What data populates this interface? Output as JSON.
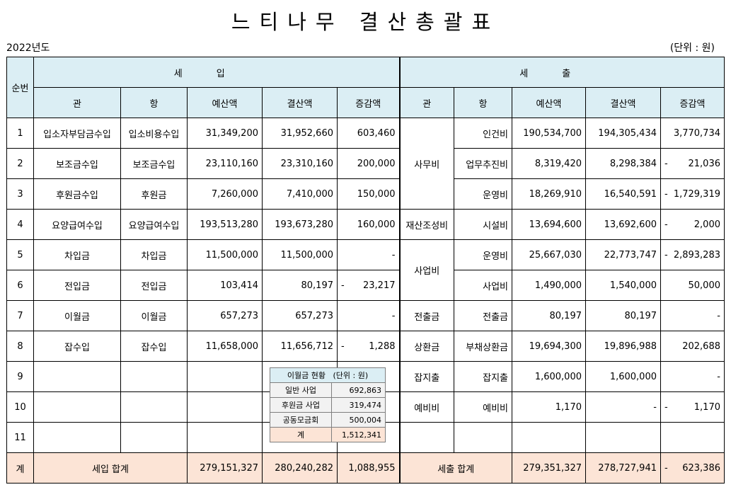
{
  "title": "느티나무 결산총괄표",
  "year": "2022년도",
  "unit": "(단위 : 원)",
  "header": {
    "seq": "순번",
    "income": "세입",
    "expense": "세출",
    "gwan": "관",
    "hang": "항",
    "budget": "예산액",
    "settled": "결산액",
    "diff": "증감액"
  },
  "income_rows": [
    {
      "no": "1",
      "gwan": "입소자부담금수입",
      "hang": "입소비용수입",
      "budget": "31,349,200",
      "settled": "31,952,660",
      "diff": "603,460",
      "neg": ""
    },
    {
      "no": "2",
      "gwan": "보조금수입",
      "hang": "보조금수입",
      "budget": "23,110,160",
      "settled": "23,310,160",
      "diff": "200,000",
      "neg": ""
    },
    {
      "no": "3",
      "gwan": "후원금수입",
      "hang": "후원금",
      "budget": "7,260,000",
      "settled": "7,410,000",
      "diff": "150,000",
      "neg": ""
    },
    {
      "no": "4",
      "gwan": "요양급여수입",
      "hang": "요양급여수입",
      "budget": "193,513,280",
      "settled": "193,673,280",
      "diff": "160,000",
      "neg": ""
    },
    {
      "no": "5",
      "gwan": "차입금",
      "hang": "차입금",
      "budget": "11,500,000",
      "settled": "11,500,000",
      "diff": "-",
      "neg": ""
    },
    {
      "no": "6",
      "gwan": "전입금",
      "hang": "전입금",
      "budget": "103,414",
      "settled": "80,197",
      "diff": "23,217",
      "neg": "-"
    },
    {
      "no": "7",
      "gwan": "이월금",
      "hang": "이월금",
      "budget": "657,273",
      "settled": "657,273",
      "diff": "-",
      "neg": ""
    },
    {
      "no": "8",
      "gwan": "잡수입",
      "hang": "잡수입",
      "budget": "11,658,000",
      "settled": "11,656,712",
      "diff": "1,288",
      "neg": "-"
    },
    {
      "no": "9",
      "gwan": "",
      "hang": "",
      "budget": "",
      "settled": "",
      "diff": "",
      "neg": ""
    },
    {
      "no": "10",
      "gwan": "",
      "hang": "",
      "budget": "",
      "settled": "",
      "diff": "",
      "neg": ""
    },
    {
      "no": "11",
      "gwan": "",
      "hang": "",
      "budget": "",
      "settled": "",
      "diff": "",
      "neg": ""
    }
  ],
  "expense_gwan": {
    "g1": "사무비",
    "g2": "재산조성비",
    "g3": "사업비",
    "g4": "전출금",
    "g5": "상환금",
    "g6": "잡지출",
    "g7": "예비비"
  },
  "expense_rows": [
    {
      "hang": "인건비",
      "budget": "190,534,700",
      "settled": "194,305,434",
      "diff": "3,770,734",
      "neg": ""
    },
    {
      "hang": "업무추진비",
      "budget": "8,319,420",
      "settled": "8,298,384",
      "diff": "21,036",
      "neg": "-"
    },
    {
      "hang": "운영비",
      "budget": "18,269,910",
      "settled": "16,540,591",
      "diff": "1,729,319",
      "neg": "-"
    },
    {
      "hang": "시설비",
      "budget": "13,694,600",
      "settled": "13,692,600",
      "diff": "2,000",
      "neg": "-"
    },
    {
      "hang": "운영비",
      "budget": "25,667,030",
      "settled": "22,773,747",
      "diff": "2,893,283",
      "neg": "-"
    },
    {
      "hang": "사업비",
      "budget": "1,490,000",
      "settled": "1,540,000",
      "diff": "50,000",
      "neg": ""
    },
    {
      "hang": "전출금",
      "budget": "80,197",
      "settled": "80,197",
      "diff": "-",
      "neg": ""
    },
    {
      "hang": "부채상환금",
      "budget": "19,694,300",
      "settled": "19,896,988",
      "diff": "202,688",
      "neg": ""
    },
    {
      "hang": "잡지출",
      "budget": "1,600,000",
      "settled": "1,600,000",
      "diff": "-",
      "neg": ""
    },
    {
      "hang": "예비비",
      "budget": "1,170",
      "settled": "-",
      "diff": "1,170",
      "neg": "-"
    },
    {
      "hang": "",
      "budget": "",
      "settled": "",
      "diff": "",
      "neg": ""
    }
  ],
  "totals": {
    "label": "계",
    "income_label": "세입 합계",
    "income_budget": "279,151,327",
    "income_settled": "280,240,282",
    "income_diff": "1,088,955",
    "expense_label": "세출 합계",
    "expense_budget": "279,351,327",
    "expense_settled": "278,727,941",
    "expense_diff": "623,386",
    "expense_diff_neg": "-"
  },
  "carryover": {
    "title": "이월금 현황",
    "unit": "(단위 : 원)",
    "items": [
      {
        "label": "일반 사업",
        "value": "692,863"
      },
      {
        "label": "후원금 사업",
        "value": "319,474"
      },
      {
        "label": "공동모금회",
        "value": "500,004"
      }
    ],
    "total_label": "계",
    "total_value": "1,512,341"
  }
}
